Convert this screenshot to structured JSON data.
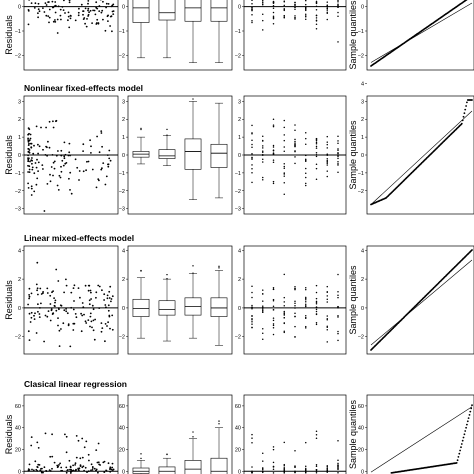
{
  "colors": {
    "ink": "#000000",
    "background": "#ffffff"
  },
  "chart_data": [
    {
      "type": "scatter",
      "title": "",
      "ylabel": "Residuals",
      "row": 0,
      "yticks": [
        0,
        -1,
        -2
      ],
      "ylim": [
        -2.6,
        0.6
      ],
      "panels": [
        "scatter",
        "box",
        "strip",
        "qq"
      ],
      "box_stats": [
        {
          "min": -2.1,
          "q1": -0.65,
          "median": -0.05,
          "q3": 0.35,
          "max": 0.5
        },
        {
          "min": -2.1,
          "q1": -0.55,
          "median": -0.25,
          "q3": 0.3,
          "max": 0.5
        },
        {
          "min": -2.3,
          "q1": -0.6,
          "median": -0.05,
          "q3": 0.4,
          "max": 0.5
        },
        {
          "min": -2.3,
          "q1": -0.6,
          "median": -0.05,
          "q3": 0.35,
          "max": 0.5
        }
      ],
      "qq_ylabel": "Sample quantiles"
    },
    {
      "type": "scatter",
      "title": "Nonlinear fixed-effects model",
      "ylabel": "Residuals",
      "row": 1,
      "yticks": [
        3,
        2,
        1,
        0,
        -1,
        -2,
        -3
      ],
      "ylim": [
        -3.3,
        3.3
      ],
      "panels": [
        "scatter",
        "box",
        "strip",
        "qq"
      ],
      "box_stats": [
        {
          "min": -0.5,
          "q1": -0.12,
          "median": 0.05,
          "q3": 0.2,
          "max": 1.0
        },
        {
          "min": -0.6,
          "q1": -0.2,
          "median": -0.05,
          "q3": 0.3,
          "max": 1.1
        },
        {
          "min": -2.5,
          "q1": -0.8,
          "median": 0.2,
          "q3": 0.9,
          "max": 3.0
        },
        {
          "min": -2.4,
          "q1": -0.7,
          "median": 0.1,
          "q3": 0.6,
          "max": 2.9
        }
      ],
      "qq_ylabel": "Sample quantiles",
      "qq_yticks": [
        4,
        3,
        2,
        1,
        0,
        -1,
        -2
      ]
    },
    {
      "type": "scatter",
      "title": "Linear mixed-effects model",
      "ylabel": "Residuals",
      "row": 2,
      "yticks": [
        4,
        2,
        0,
        -2
      ],
      "ylim": [
        -3.2,
        4.3
      ],
      "panels": [
        "scatter",
        "box",
        "strip",
        "qq"
      ],
      "box_stats": [
        {
          "min": -2.1,
          "q1": -0.6,
          "median": -0.05,
          "q3": 0.6,
          "max": 2.1
        },
        {
          "min": -2.3,
          "q1": -0.5,
          "median": -0.1,
          "q3": 0.5,
          "max": 2.0
        },
        {
          "min": -2.1,
          "q1": -0.5,
          "median": 0.1,
          "q3": 0.7,
          "max": 2.4
        },
        {
          "min": -2.6,
          "q1": -0.6,
          "median": 0.0,
          "q3": 0.7,
          "max": 2.6
        }
      ],
      "qq_ylabel": "Sample quantiles",
      "qq_yticks": [
        4,
        2,
        0,
        -2
      ]
    },
    {
      "type": "scatter",
      "title": "Clasical linear regression",
      "ylabel": "Residuals",
      "row": 3,
      "yticks": [
        60,
        40,
        20,
        0
      ],
      "ylim": [
        -8,
        70
      ],
      "panels": [
        "scatter",
        "box",
        "strip",
        "qq"
      ],
      "box_stats": [
        {
          "min": -4,
          "q1": -2,
          "median": 0,
          "q3": 3,
          "max": 10
        },
        {
          "min": -5,
          "q1": -3,
          "median": 0,
          "q3": 4,
          "max": 12
        },
        {
          "min": -6,
          "q1": -3,
          "median": 2,
          "q3": 10,
          "max": 30
        },
        {
          "min": -6,
          "q1": -3,
          "median": 0,
          "q3": 12,
          "max": 40
        }
      ],
      "qq_ylabel": "Sample quantiles",
      "qq_yticks": [
        60,
        40,
        20,
        0
      ]
    }
  ]
}
